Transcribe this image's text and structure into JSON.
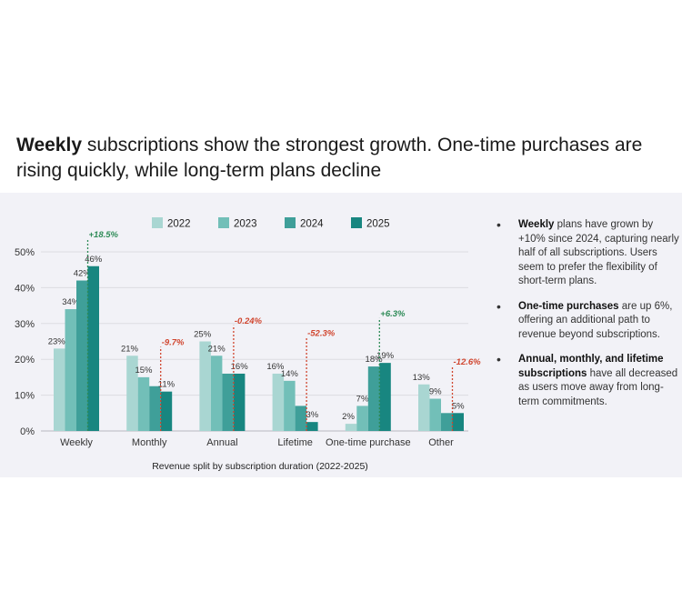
{
  "title": {
    "bold": "Weekly",
    "rest": " subscriptions show the strongest growth. One-time purchases are rising quickly, while long-term plans decline"
  },
  "chart_data": {
    "type": "bar",
    "categories": [
      "Weekly",
      "Monthly",
      "Annual",
      "Lifetime",
      "One-time purchase",
      "Other"
    ],
    "series": [
      {
        "name": "2022",
        "values": [
          23,
          21,
          25,
          16,
          2,
          13
        ],
        "labels": [
          "23%",
          "21%",
          "25%",
          "16%",
          "2%",
          "13%"
        ],
        "color": "#a9d6d2"
      },
      {
        "name": "2023",
        "values": [
          34,
          15,
          21,
          14,
          7,
          9
        ],
        "labels": [
          "34%",
          "15%",
          "21%",
          "14%",
          "7%",
          "9%"
        ],
        "color": "#72bfb8"
      },
      {
        "name": "2024",
        "values": [
          42,
          12.5,
          16,
          7,
          18,
          5
        ],
        "labels": [
          "42%",
          "",
          "",
          "",
          "18%",
          ""
        ],
        "color": "#3f9f99"
      },
      {
        "name": "2025",
        "values": [
          46,
          11,
          16,
          2.5,
          19,
          5
        ],
        "labels": [
          "46%",
          "11%",
          "16%",
          "3%",
          "19%",
          "5%"
        ],
        "color": "#188680"
      }
    ],
    "changes": [
      {
        "label": "+18.5%",
        "color": "#2e8b57"
      },
      {
        "label": "-9.7%",
        "color": "#d0452e"
      },
      {
        "label": "-0.24%",
        "color": "#d0452e"
      },
      {
        "label": "-52.3%",
        "color": "#d0452e"
      },
      {
        "label": "+6.3%",
        "color": "#2e8b57"
      },
      {
        "label": "-12.6%",
        "color": "#d0452e"
      }
    ],
    "yticks": [
      "0%",
      "10%",
      "20%",
      "30%",
      "40%",
      "50%"
    ],
    "ylim": [
      0,
      50
    ],
    "xlabel": "Revenue split by subscription duration (2022-2025)",
    "legend": "top",
    "grid": true
  },
  "notes": [
    {
      "bold": "Weekly",
      "text": " plans have grown by +10% since 2024, capturing nearly half of all subscriptions. Users seem to prefer the flexibility of short-term plans."
    },
    {
      "bold": "One-time purchases",
      "text": " are up 6%, offering an additional path to revenue beyond subscriptions."
    },
    {
      "bold": "Annual, monthly, and lifetime subscriptions",
      "text": " have all decreased as users move away from long-term commitments."
    }
  ],
  "bullet": "•"
}
